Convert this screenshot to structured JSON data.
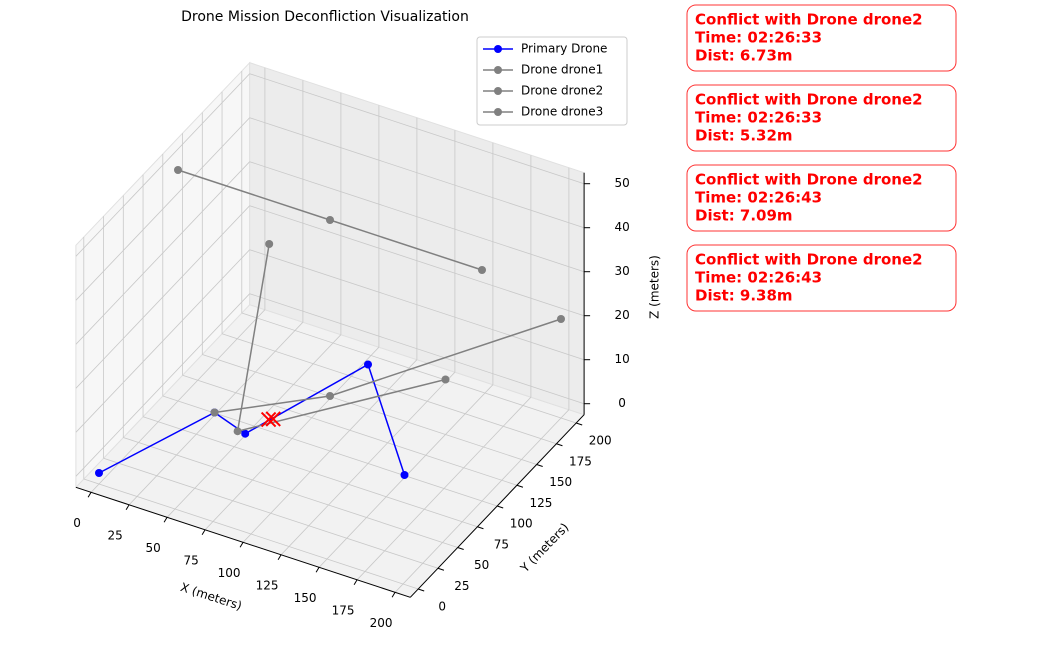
{
  "chart_data": {
    "type": "scatter3d",
    "title": "Drone Mission Deconfliction Visualization",
    "xlabel": "X (meters)",
    "ylabel": "Y (meters)",
    "zlabel": "Z (meters)",
    "xlim": [
      -10,
      210
    ],
    "ylim": [
      -10,
      210
    ],
    "zlim": [
      -2.5,
      52.5
    ],
    "xticks": [
      0,
      25,
      50,
      75,
      100,
      125,
      150,
      175,
      200
    ],
    "yticks": [
      0,
      25,
      50,
      75,
      100,
      125,
      150,
      175,
      200
    ],
    "zticks": [
      0,
      10,
      20,
      30,
      40,
      50
    ],
    "grid": true,
    "legend": "upper right",
    "series": [
      {
        "name": "Primary Drone",
        "color": "#0000ff",
        "x": [
          0,
          50,
          65,
          125,
          175
        ],
        "y": [
          0,
          50,
          60,
          100,
          50
        ],
        "z": [
          0,
          10,
          5,
          20,
          10
        ]
      },
      {
        "name": "Drone drone1",
        "color": "#808080",
        "x": [
          0,
          100,
          200
        ],
        "y": [
          100,
          100,
          100
        ],
        "z": [
          50,
          50,
          50
        ]
      },
      {
        "name": "Drone drone2",
        "color": "#808080",
        "x": [
          60,
          60,
          150
        ],
        "y": [
          100,
          60,
          150
        ],
        "z": [
          40,
          5,
          10
        ]
      },
      {
        "name": "Drone drone3",
        "color": "#808080",
        "x": [
          50,
          100,
          200
        ],
        "y": [
          50,
          100,
          200
        ],
        "z": [
          10,
          10,
          20
        ]
      }
    ],
    "conflicts": {
      "color": "#ff0000",
      "x": [
        70,
        72
      ],
      "y": [
        80,
        82
      ],
      "z": [
        5,
        5
      ]
    },
    "annotations": [
      [
        "Conflict with Drone drone2",
        "Time: 02:26:33",
        "Dist: 6.73m"
      ],
      [
        "Conflict with Drone drone2",
        "Time: 02:26:33",
        "Dist: 5.32m"
      ],
      [
        "Conflict with Drone drone2",
        "Time: 02:26:43",
        "Dist: 7.09m"
      ],
      [
        "Conflict with Drone drone2",
        "Time: 02:26:43",
        "Dist: 9.38m"
      ]
    ]
  }
}
